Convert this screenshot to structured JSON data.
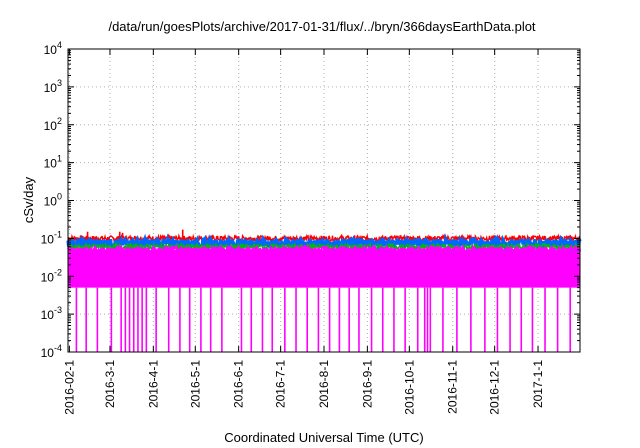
{
  "chart_data": {
    "type": "line",
    "title": "/data/run/goesPlots/archive/2017-01-31/flux/../bryn/366daysEarthData.plot",
    "xlabel": "Coordinated Universal Time (UTC)",
    "ylabel": "cSv/day",
    "y_scale": "log",
    "ylim": [
      0.0001,
      10000
    ],
    "xlim": [
      "2016-01-31",
      "2017-01-31"
    ],
    "grid": true,
    "legend": "none",
    "x_ticks": [
      {
        "date": "2016-02-01",
        "label": "2016-02-1"
      },
      {
        "date": "2016-03-01",
        "label": "2016-3-1"
      },
      {
        "date": "2016-04-01",
        "label": "2016-4-1"
      },
      {
        "date": "2016-05-01",
        "label": "2016-5-1"
      },
      {
        "date": "2016-06-01",
        "label": "2016-6-1"
      },
      {
        "date": "2016-07-01",
        "label": "2016-7-1"
      },
      {
        "date": "2016-08-01",
        "label": "2016-8-1"
      },
      {
        "date": "2016-09-01",
        "label": "2016-9-1"
      },
      {
        "date": "2016-10-01",
        "label": "2016-10-1"
      },
      {
        "date": "2016-11-01",
        "label": "2016-11-1"
      },
      {
        "date": "2016-12-01",
        "label": "2016-12-1"
      },
      {
        "date": "2017-01-01",
        "label": "2017-1-1"
      }
    ],
    "y_ticks": [
      {
        "value": 0.0001,
        "base": "10",
        "exp": "-4"
      },
      {
        "value": 0.001,
        "base": "10",
        "exp": "-3"
      },
      {
        "value": 0.01,
        "base": "10",
        "exp": "-2"
      },
      {
        "value": 0.1,
        "base": "10",
        "exp": "-1"
      },
      {
        "value": 1,
        "base": "10",
        "exp": "0"
      },
      {
        "value": 10,
        "base": "10",
        "exp": "1"
      },
      {
        "value": 100,
        "base": "10",
        "exp": "2"
      },
      {
        "value": 1000,
        "base": "10",
        "exp": "3"
      },
      {
        "value": 10000,
        "base": "10",
        "exp": "4"
      }
    ],
    "series": [
      {
        "color": "#ff0000",
        "typical": 0.1,
        "x": [
          "2016-01-31",
          "2016-03-01",
          "2016-04-01",
          "2016-05-01",
          "2016-06-01",
          "2016-07-01",
          "2016-08-01",
          "2016-09-01",
          "2016-10-01",
          "2016-11-01",
          "2016-12-01",
          "2017-01-01",
          "2017-01-31"
        ],
        "y": [
          0.1,
          0.1,
          0.1,
          0.1,
          0.1,
          0.1,
          0.1,
          0.1,
          0.1,
          0.1,
          0.1,
          0.1,
          0.1
        ]
      },
      {
        "color": "#0066ff",
        "typical": 0.075,
        "x": [
          "2016-01-31",
          "2016-03-01",
          "2016-04-01",
          "2016-05-01",
          "2016-06-01",
          "2016-07-01",
          "2016-08-01",
          "2016-09-01",
          "2016-10-01",
          "2016-11-01",
          "2016-12-01",
          "2017-01-01",
          "2017-01-31"
        ],
        "y": [
          0.075,
          0.075,
          0.075,
          0.075,
          0.075,
          0.075,
          0.075,
          0.075,
          0.075,
          0.075,
          0.075,
          0.075,
          0.075
        ]
      },
      {
        "color": "#00bb00",
        "typical": 0.06,
        "x": [
          "2016-01-31",
          "2016-03-01",
          "2016-04-01",
          "2016-05-01",
          "2016-06-01",
          "2016-07-01",
          "2016-08-01",
          "2016-09-01",
          "2016-10-01",
          "2016-11-01",
          "2016-12-01",
          "2017-01-01",
          "2017-01-31"
        ],
        "y": [
          0.06,
          0.06,
          0.06,
          0.06,
          0.06,
          0.06,
          0.06,
          0.06,
          0.06,
          0.06,
          0.06,
          0.06,
          0.06
        ]
      },
      {
        "color": "#ff00ff",
        "typical": 0.05,
        "lower": 0.005,
        "x": [
          "2016-01-31",
          "2016-03-01",
          "2016-04-01",
          "2016-05-01",
          "2016-06-01",
          "2016-07-01",
          "2016-08-01",
          "2016-09-01",
          "2016-10-01",
          "2016-11-01",
          "2016-12-01",
          "2017-01-01",
          "2017-01-31"
        ],
        "y": [
          0.05,
          0.05,
          0.05,
          0.05,
          0.05,
          0.05,
          0.05,
          0.05,
          0.05,
          0.05,
          0.05,
          0.05,
          0.05
        ]
      }
    ],
    "spikes": [
      {
        "date": "2016-02-14",
        "value": 0.15,
        "color": "#ff0000"
      },
      {
        "date": "2016-03-08",
        "value": 0.15,
        "color": "#ff0000"
      },
      {
        "date": "2016-03-10",
        "value": 0.14,
        "color": "#ff0000"
      },
      {
        "date": "2016-04-22",
        "value": 0.17,
        "color": "#ff0000"
      }
    ],
    "dropouts": [
      "2016-02-06",
      "2016-02-13",
      "2016-02-21",
      "2016-03-02",
      "2016-03-09",
      "2016-03-12",
      "2016-03-15",
      "2016-03-18",
      "2016-03-21",
      "2016-03-24",
      "2016-03-27",
      "2016-04-03",
      "2016-04-12",
      "2016-04-20",
      "2016-04-27",
      "2016-05-05",
      "2016-05-12",
      "2016-05-20",
      "2016-06-03",
      "2016-06-10",
      "2016-06-18",
      "2016-06-25",
      "2016-07-04",
      "2016-07-12",
      "2016-07-20",
      "2016-07-28",
      "2016-08-05",
      "2016-08-12",
      "2016-08-19",
      "2016-08-26",
      "2016-09-04",
      "2016-09-12",
      "2016-09-20",
      "2016-09-28",
      "2016-10-07",
      "2016-10-12",
      "2016-10-14",
      "2016-10-16",
      "2016-10-25",
      "2016-11-04",
      "2016-11-14",
      "2016-11-24",
      "2016-12-03",
      "2016-12-12",
      "2016-12-20",
      "2016-12-28",
      "2017-01-06",
      "2017-01-15",
      "2017-01-24"
    ]
  }
}
